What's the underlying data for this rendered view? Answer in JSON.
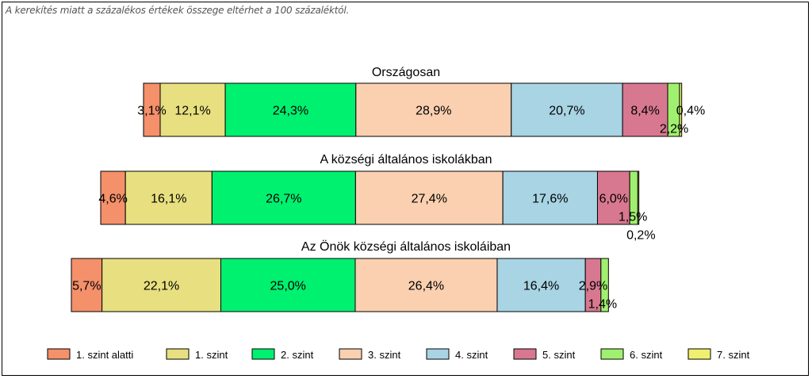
{
  "note": "A kerekítés miatt a  százalékos értékek összege eltérhet a 100 százaléktól.",
  "chart_data": {
    "type": "bar",
    "orientation": "horizontal",
    "stacked": true,
    "categories": [
      "Országosan",
      "A községi általános iskolákban",
      "Az Önök községi általános iskoláiban"
    ],
    "series": [
      {
        "name": "1. szint alatti",
        "color": "#F4906A",
        "values": [
          3.1,
          4.6,
          5.7
        ],
        "labels": [
          "3,1%",
          "4,6%",
          "5,7%"
        ]
      },
      {
        "name": "1. szint",
        "color": "#E8E080",
        "values": [
          12.1,
          16.1,
          22.1
        ],
        "labels": [
          "12,1%",
          "16,1%",
          "22,1%"
        ]
      },
      {
        "name": "2. szint",
        "color": "#00F070",
        "values": [
          24.3,
          26.7,
          25.0
        ],
        "labels": [
          "24,3%",
          "26,7%",
          "25,0%"
        ]
      },
      {
        "name": "3. szint",
        "color": "#FAD0B0",
        "values": [
          28.9,
          27.4,
          26.4
        ],
        "labels": [
          "28,9%",
          "27,4%",
          "26,4%"
        ]
      },
      {
        "name": "4. szint",
        "color": "#A8D4E4",
        "values": [
          20.7,
          17.6,
          16.4
        ],
        "labels": [
          "20,7%",
          "17,6%",
          "16,4%"
        ]
      },
      {
        "name": "5. szint",
        "color": "#D87890",
        "values": [
          8.4,
          6.0,
          2.9
        ],
        "labels": [
          "8,4%",
          "6,0%",
          "2,9%"
        ]
      },
      {
        "name": "6. szint",
        "color": "#A0F070",
        "values": [
          2.2,
          1.5,
          1.4
        ],
        "labels": [
          "2,2%",
          "1,5%",
          "1,4%"
        ]
      },
      {
        "name": "7. szint",
        "color": "#F0F070",
        "values": [
          0.4,
          0.2,
          0.0
        ],
        "labels": [
          "0,4%",
          "0,2%",
          ""
        ]
      }
    ],
    "legend_position": "bottom",
    "grid": false
  }
}
